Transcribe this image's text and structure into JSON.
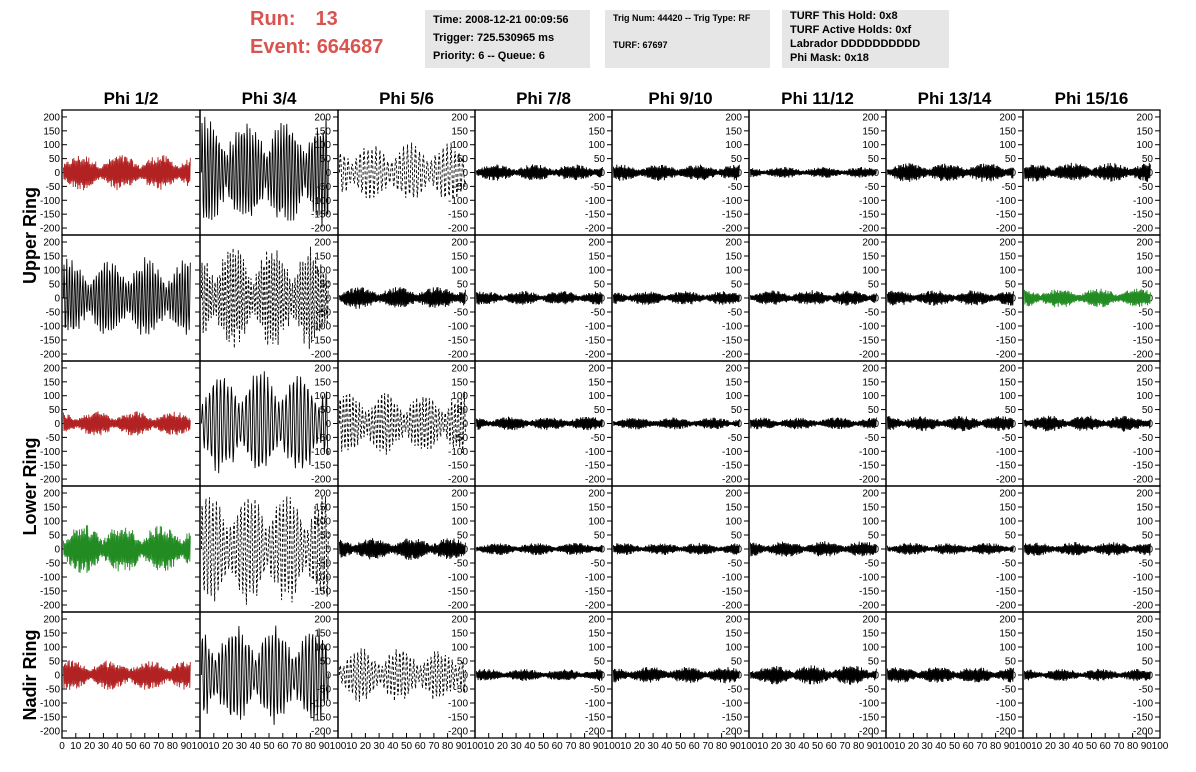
{
  "header": {
    "run_label": "Run:",
    "run_value": "13",
    "event_label": "Event:",
    "event_value": "664687",
    "accent_color": "#d9534f",
    "time_box": [
      "Time: 2008-12-21 00:09:56",
      "Trigger: 725.530965 ms",
      "Priority: 6 -- Queue: 6"
    ],
    "trig_box": [
      "Trig Num: 44420 -- Trig Type: RF",
      "TURF: 67697"
    ],
    "turf_box": [
      "TURF This Hold: 0x8",
      "TURF Active Holds: 0xf",
      "Labrador DDDDDDDDDD",
      "Phi Mask: 0x18"
    ]
  },
  "chart_data": {
    "type": "line",
    "columns": [
      "Phi 1/2",
      "Phi 3/4",
      "Phi 5/6",
      "Phi 7/8",
      "Phi 9/10",
      "Phi 11/12",
      "Phi 13/14",
      "Phi 15/16"
    ],
    "ring_labels": [
      "Upper Ring",
      "Lower Ring",
      "Nadir Ring"
    ],
    "ylim": [
      -225,
      225
    ],
    "yticks": [
      -200,
      -150,
      -100,
      -50,
      0,
      50,
      100,
      150,
      200
    ],
    "xlim": [
      0,
      100
    ],
    "xticks": [
      0,
      10,
      20,
      30,
      40,
      50,
      60,
      70,
      80,
      90,
      100
    ],
    "colors": {
      "black": "#000000",
      "red": "#b22222",
      "green": "#228b22"
    },
    "panels": [
      {
        "row": 1,
        "col": 1,
        "color": "red",
        "style": "solid",
        "amplitude": 65
      },
      {
        "row": 1,
        "col": 2,
        "color": "black",
        "style": "solid",
        "amplitude": 210
      },
      {
        "row": 1,
        "col": 3,
        "color": "black",
        "style": "dashed",
        "amplitude": 110
      },
      {
        "row": 1,
        "col": 4,
        "color": "black",
        "style": "solid",
        "amplitude": 30
      },
      {
        "row": 1,
        "col": 5,
        "color": "black",
        "style": "solid",
        "amplitude": 30
      },
      {
        "row": 1,
        "col": 6,
        "color": "black",
        "style": "solid",
        "amplitude": 20
      },
      {
        "row": 1,
        "col": 7,
        "color": "black",
        "style": "solid",
        "amplitude": 35
      },
      {
        "row": 1,
        "col": 8,
        "color": "black",
        "style": "solid",
        "amplitude": 35
      },
      {
        "row": 2,
        "col": 1,
        "color": "black",
        "style": "solid",
        "amplitude": 150
      },
      {
        "row": 2,
        "col": 2,
        "color": "black",
        "style": "dashed",
        "amplitude": 190
      },
      {
        "row": 2,
        "col": 3,
        "color": "black",
        "style": "solid",
        "amplitude": 40
      },
      {
        "row": 2,
        "col": 4,
        "color": "black",
        "style": "solid",
        "amplitude": 25
      },
      {
        "row": 2,
        "col": 5,
        "color": "black",
        "style": "solid",
        "amplitude": 25
      },
      {
        "row": 2,
        "col": 6,
        "color": "black",
        "style": "solid",
        "amplitude": 28
      },
      {
        "row": 2,
        "col": 7,
        "color": "black",
        "style": "solid",
        "amplitude": 28
      },
      {
        "row": 2,
        "col": 8,
        "color": "green",
        "style": "solid",
        "amplitude": 35
      },
      {
        "row": 3,
        "col": 1,
        "color": "red",
        "style": "solid",
        "amplitude": 45
      },
      {
        "row": 3,
        "col": 2,
        "color": "black",
        "style": "solid",
        "amplitude": 200
      },
      {
        "row": 3,
        "col": 3,
        "color": "black",
        "style": "dashed",
        "amplitude": 120
      },
      {
        "row": 3,
        "col": 4,
        "color": "black",
        "style": "solid",
        "amplitude": 25
      },
      {
        "row": 3,
        "col": 5,
        "color": "black",
        "style": "solid",
        "amplitude": 22
      },
      {
        "row": 3,
        "col": 6,
        "color": "black",
        "style": "solid",
        "amplitude": 22
      },
      {
        "row": 3,
        "col": 7,
        "color": "black",
        "style": "solid",
        "amplitude": 28
      },
      {
        "row": 3,
        "col": 8,
        "color": "black",
        "style": "solid",
        "amplitude": 30
      },
      {
        "row": 4,
        "col": 1,
        "color": "green",
        "style": "solid",
        "amplitude": 90
      },
      {
        "row": 4,
        "col": 2,
        "color": "black",
        "style": "dashed",
        "amplitude": 210
      },
      {
        "row": 4,
        "col": 3,
        "color": "black",
        "style": "solid",
        "amplitude": 40
      },
      {
        "row": 4,
        "col": 4,
        "color": "black",
        "style": "solid",
        "amplitude": 22
      },
      {
        "row": 4,
        "col": 5,
        "color": "black",
        "style": "solid",
        "amplitude": 22
      },
      {
        "row": 4,
        "col": 6,
        "color": "black",
        "style": "solid",
        "amplitude": 28
      },
      {
        "row": 4,
        "col": 7,
        "color": "black",
        "style": "solid",
        "amplitude": 22
      },
      {
        "row": 4,
        "col": 8,
        "color": "black",
        "style": "solid",
        "amplitude": 25
      },
      {
        "row": 5,
        "col": 1,
        "color": "red",
        "style": "solid",
        "amplitude": 55
      },
      {
        "row": 5,
        "col": 2,
        "color": "black",
        "style": "solid",
        "amplitude": 190
      },
      {
        "row": 5,
        "col": 3,
        "color": "black",
        "style": "dashed",
        "amplitude": 100
      },
      {
        "row": 5,
        "col": 4,
        "color": "black",
        "style": "solid",
        "amplitude": 22
      },
      {
        "row": 5,
        "col": 5,
        "color": "black",
        "style": "solid",
        "amplitude": 30
      },
      {
        "row": 5,
        "col": 6,
        "color": "black",
        "style": "solid",
        "amplitude": 35
      },
      {
        "row": 5,
        "col": 7,
        "color": "black",
        "style": "solid",
        "amplitude": 30
      },
      {
        "row": 5,
        "col": 8,
        "color": "black",
        "style": "solid",
        "amplitude": 22
      }
    ]
  }
}
